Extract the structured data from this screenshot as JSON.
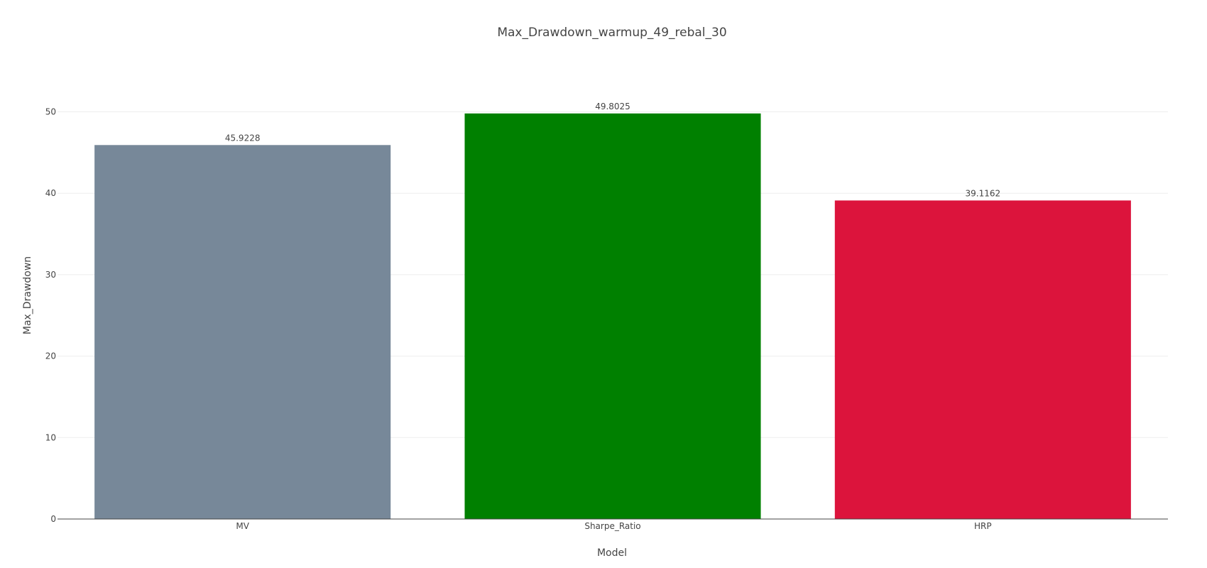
{
  "chart_data": {
    "type": "bar",
    "title": "Max_Drawdown_warmup_49_rebal_30",
    "xlabel": "Model",
    "ylabel": "Max_Drawdown",
    "categories": [
      "MV",
      "Sharpe_Ratio",
      "HRP"
    ],
    "values": [
      45.9228,
      49.8025,
      39.1162
    ],
    "value_labels": [
      "45.9228",
      "49.8025",
      "39.1162"
    ],
    "colors": [
      "#778899",
      "#008000",
      "#dc143c"
    ],
    "ylim": [
      0,
      52.4
    ],
    "yticks": [
      0,
      10,
      20,
      30,
      40,
      50
    ],
    "grid": true,
    "legend": false
  }
}
